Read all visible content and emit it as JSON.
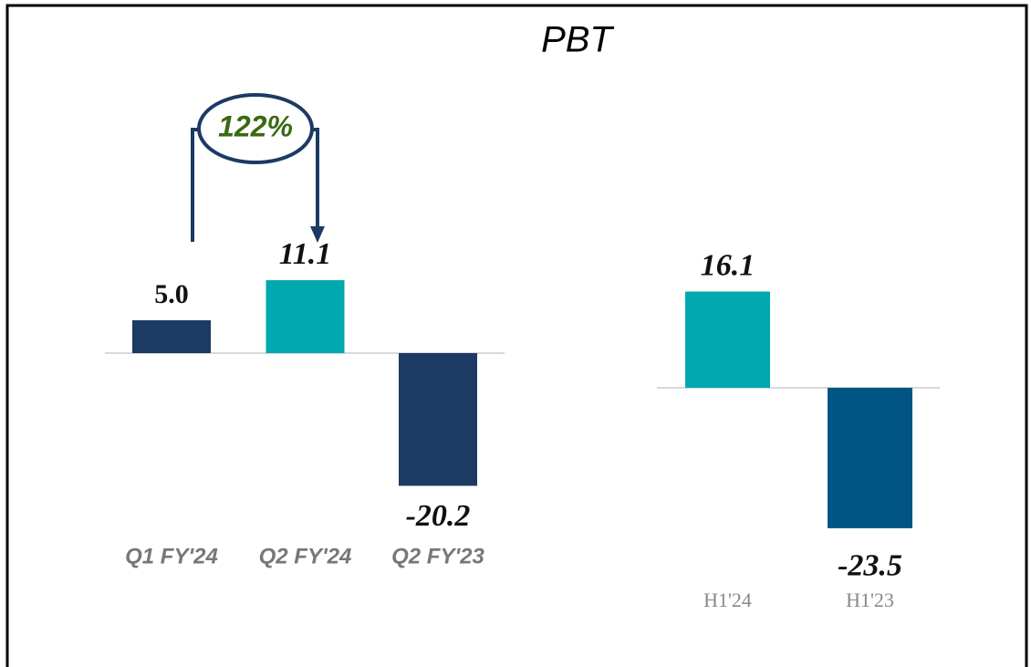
{
  "chart_data": [
    {
      "type": "bar",
      "title": "PBT",
      "annotation": "122%",
      "categories": [
        "Q1 FY'24",
        "Q2 FY'24",
        "Q2 FY'23"
      ],
      "values": [
        5.0,
        11.1,
        -20.2
      ],
      "value_labels": [
        "5.0",
        "11.1",
        "-20.2"
      ],
      "colors": [
        "#1c3a63",
        "#00a8b0",
        "#1c3a63"
      ]
    },
    {
      "type": "bar",
      "categories": [
        "H1'24",
        "H1'23"
      ],
      "values": [
        16.1,
        -23.5
      ],
      "value_labels": [
        "16.1",
        "-23.5"
      ],
      "colors": [
        "#00a8b0",
        "#005585"
      ]
    }
  ]
}
